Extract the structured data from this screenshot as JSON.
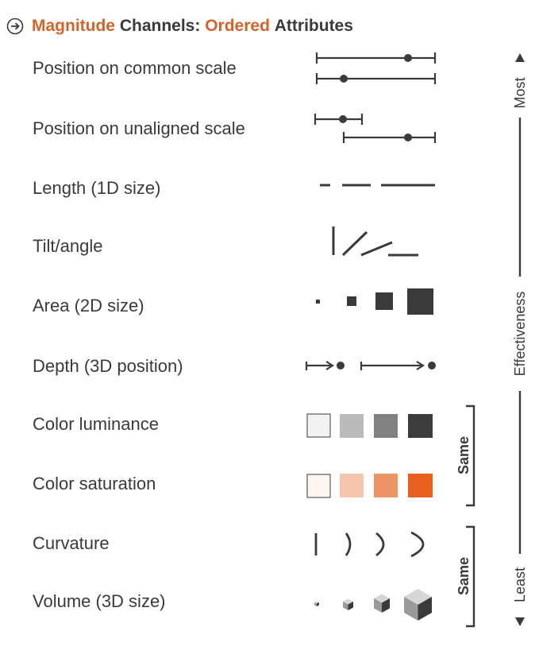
{
  "title": {
    "word1": "Magnitude",
    "word2": "Channels:",
    "word3": "Ordered",
    "word4": "Attributes"
  },
  "channels": [
    {
      "label": "Position on common scale",
      "icon": "position-common-scale-icon"
    },
    {
      "label": "Position on unaligned scale",
      "icon": "position-unaligned-scale-icon"
    },
    {
      "label": "Length (1D size)",
      "icon": "length-icon"
    },
    {
      "label": "Tilt/angle",
      "icon": "tilt-angle-icon"
    },
    {
      "label": "Area (2D size)",
      "icon": "area-icon"
    },
    {
      "label": "Depth (3D position)",
      "icon": "depth-icon"
    },
    {
      "label": "Color luminance",
      "icon": "luminance-swatches-icon"
    },
    {
      "label": "Color saturation",
      "icon": "saturation-swatches-icon"
    },
    {
      "label": "Curvature",
      "icon": "curvature-icon"
    },
    {
      "label": "Volume (3D size)",
      "icon": "volume-cubes-icon"
    }
  ],
  "brackets": {
    "same_1": "Same",
    "same_2": "Same"
  },
  "effectiveness_axis": {
    "most": "Most",
    "middle": "Effectiveness",
    "least": "Least"
  },
  "colors": {
    "text": "#3a3a3a",
    "accent": "#d2642c",
    "luminance": [
      "#f2f2f2",
      "#bbbbbb",
      "#828282",
      "#3c3c3c"
    ],
    "saturation": [
      "#fff6f1",
      "#f4c6b0",
      "#ee9568",
      "#e8601f"
    ]
  }
}
